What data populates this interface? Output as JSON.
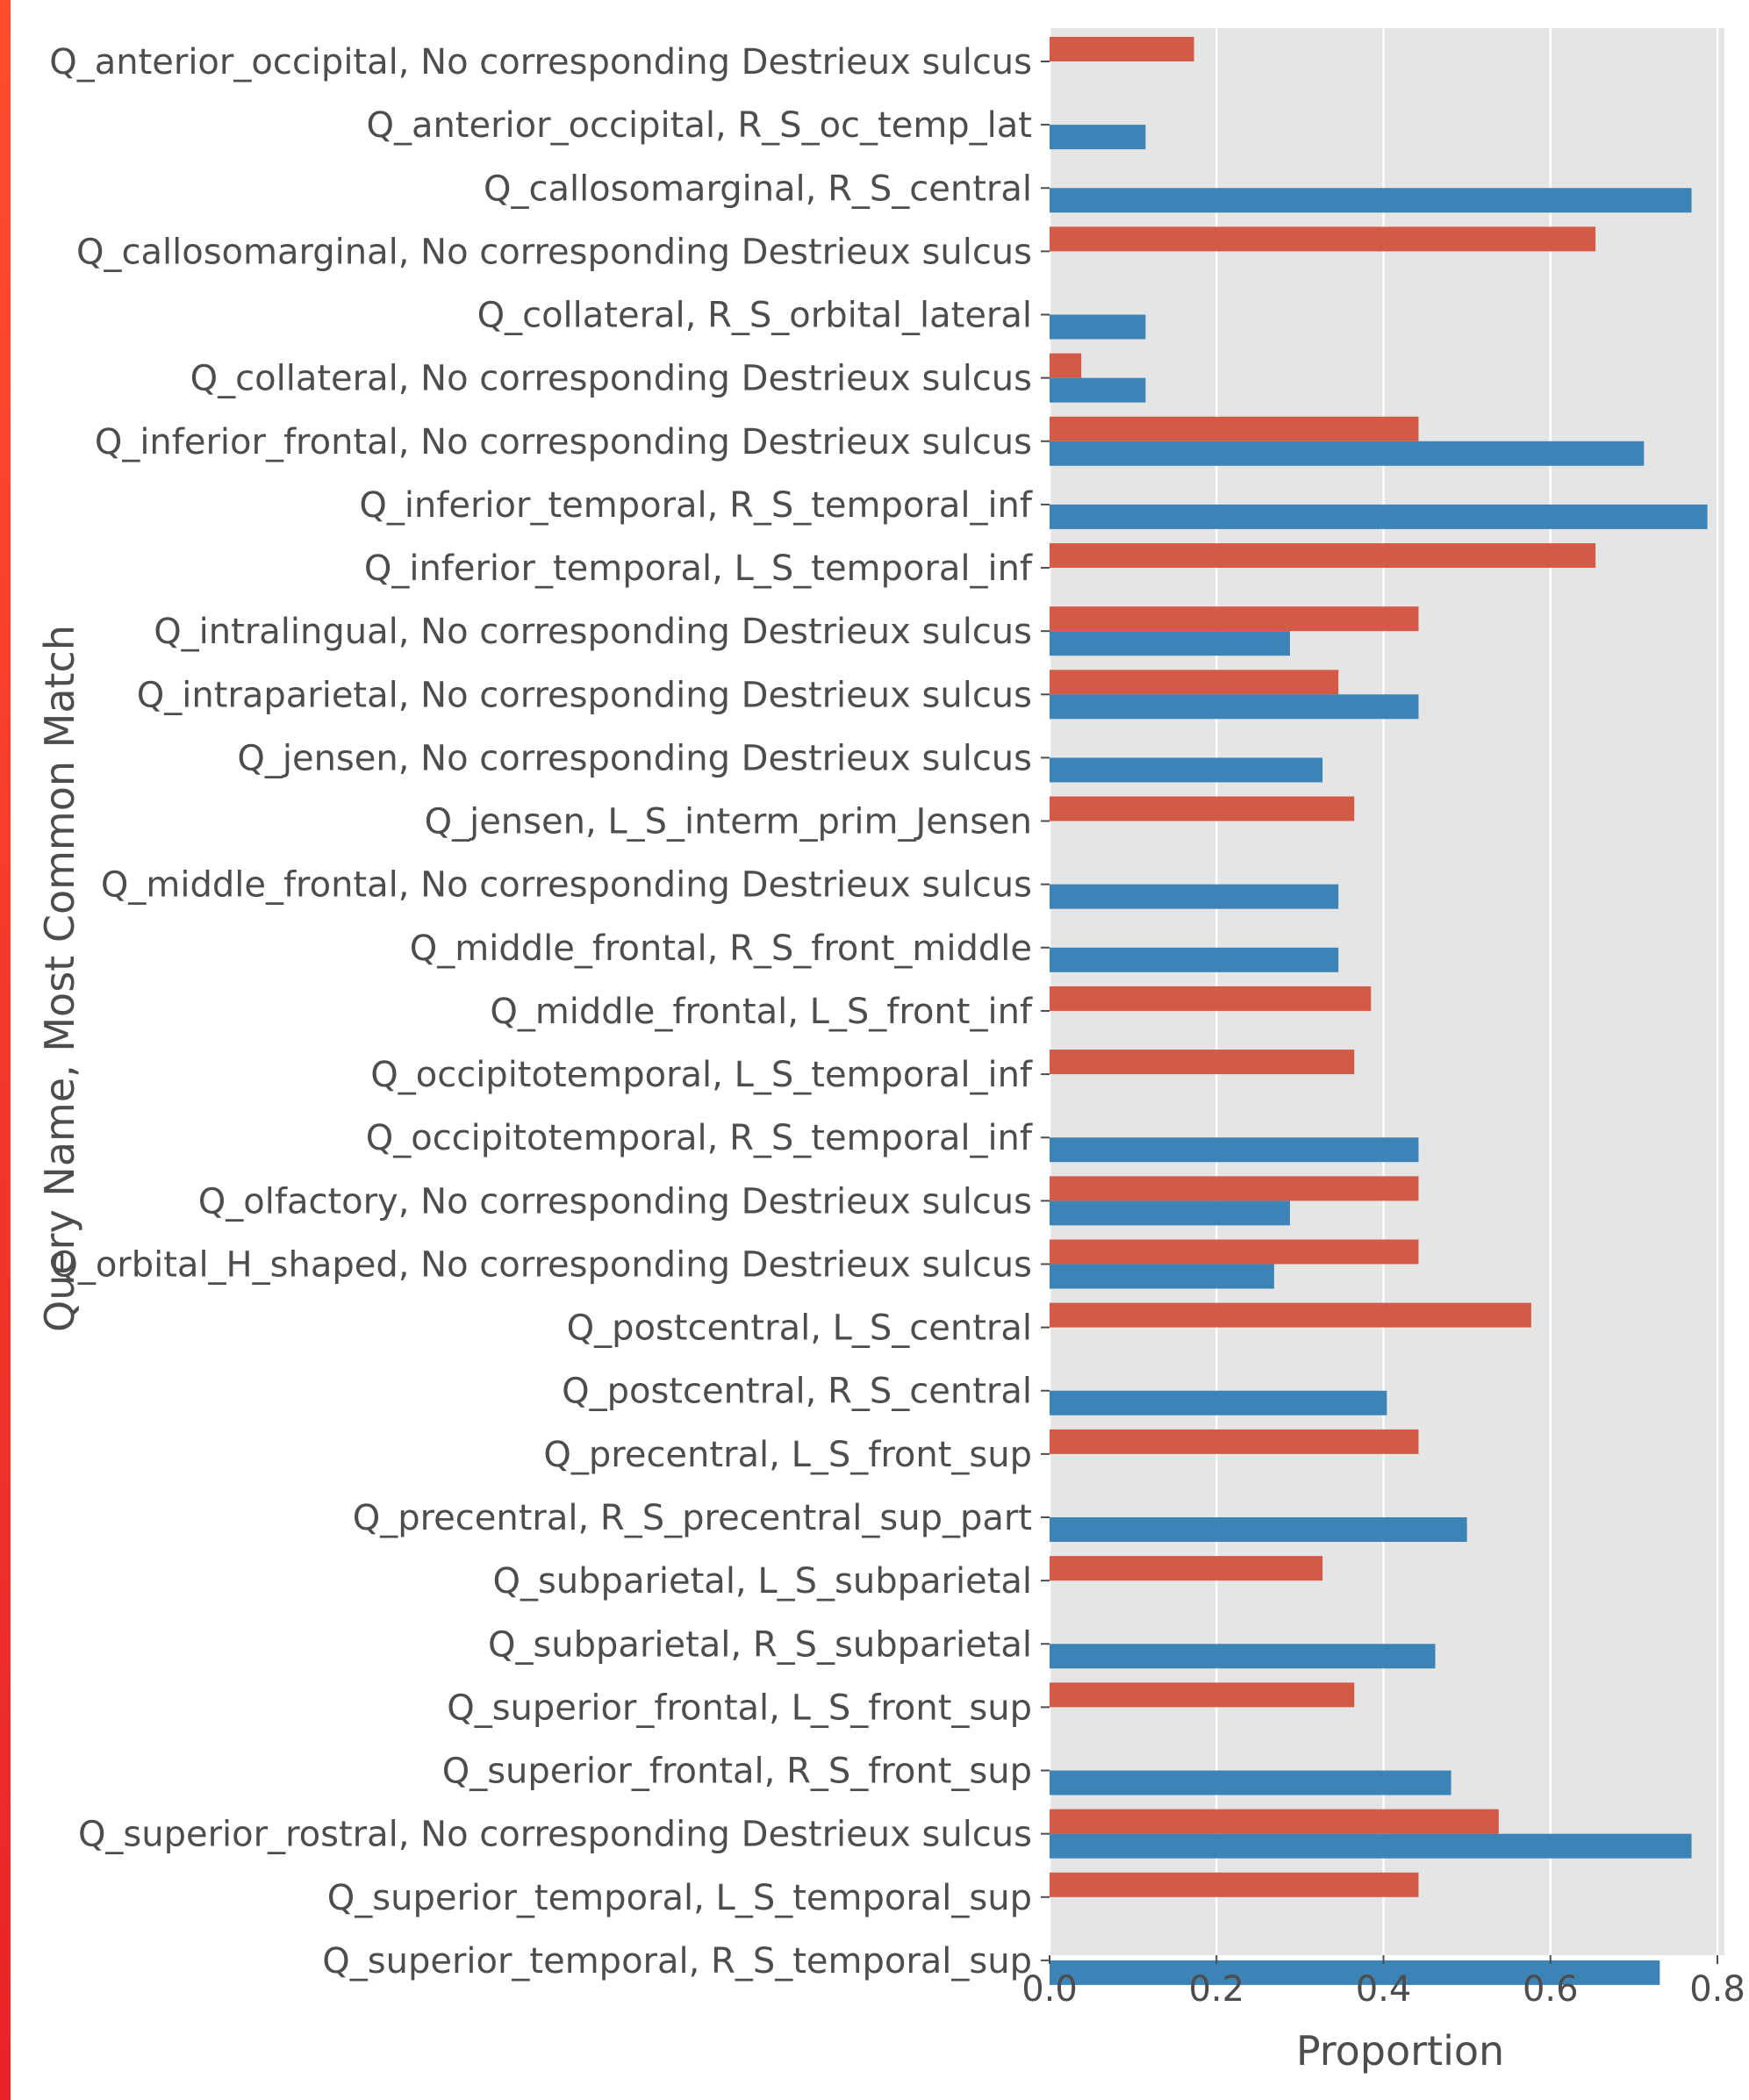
{
  "colors": {
    "panel": "#e5e5e5",
    "grid": "#ffffff",
    "tick": "#4d4d4d",
    "series_red": "#d35a46",
    "series_blue": "#3d84b6",
    "accent": "#ee2e2b"
  },
  "chart_data": {
    "type": "bar",
    "orientation": "horizontal",
    "xlabel": "Proportion",
    "ylabel": "Query Name, Most Common Match",
    "xlim": [
      0,
      0.8
    ],
    "xticks": [
      "0.0",
      "0.2",
      "0.4",
      "0.6",
      "0.8"
    ],
    "grid": true,
    "legend": "none",
    "categories": [
      "Q_anterior_occipital, No corresponding Destrieux sulcus",
      "Q_anterior_occipital, R_S_oc_temp_lat",
      "Q_callosomarginal, R_S_central",
      "Q_callosomarginal, No corresponding Destrieux sulcus",
      "Q_collateral, R_S_orbital_lateral",
      "Q_collateral, No corresponding Destrieux sulcus",
      "Q_inferior_frontal, No corresponding Destrieux sulcus",
      "Q_inferior_temporal, R_S_temporal_inf",
      "Q_inferior_temporal, L_S_temporal_inf",
      "Q_intralingual, No corresponding Destrieux sulcus",
      "Q_intraparietal, No corresponding Destrieux sulcus",
      "Q_jensen, No corresponding Destrieux sulcus",
      "Q_jensen, L_S_interm_prim_Jensen",
      "Q_middle_frontal, No corresponding Destrieux sulcus",
      "Q_middle_frontal, R_S_front_middle",
      "Q_middle_frontal, L_S_front_inf",
      "Q_occipitotemporal, L_S_temporal_inf",
      "Q_occipitotemporal, R_S_temporal_inf",
      "Q_olfactory, No corresponding Destrieux sulcus",
      "Q_orbital_H_shaped, No corresponding Destrieux sulcus",
      "Q_postcentral, L_S_central",
      "Q_postcentral, R_S_central",
      "Q_precentral, L_S_front_sup",
      "Q_precentral, R_S_precentral_sup_part",
      "Q_subparietal, L_S_subparietal",
      "Q_subparietal, R_S_subparietal",
      "Q_superior_frontal, L_S_front_sup",
      "Q_superior_frontal, R_S_front_sup",
      "Q_superior_rostral, No corresponding Destrieux sulcus",
      "Q_superior_temporal, L_S_temporal_sup",
      "Q_superior_temporal, R_S_temporal_sup"
    ],
    "series": [
      {
        "color": "#d35a46",
        "values": [
          0.173,
          null,
          null,
          0.654,
          null,
          0.038,
          0.442,
          null,
          0.654,
          0.442,
          0.346,
          null,
          0.365,
          null,
          null,
          0.385,
          0.365,
          null,
          0.442,
          0.442,
          0.577,
          null,
          0.442,
          null,
          0.327,
          null,
          0.365,
          null,
          0.538,
          0.442,
          null
        ]
      },
      {
        "color": "#3d84b6",
        "values": [
          null,
          0.115,
          0.769,
          null,
          0.115,
          0.115,
          0.712,
          0.788,
          null,
          0.288,
          0.442,
          0.327,
          null,
          0.346,
          0.346,
          null,
          null,
          0.442,
          0.288,
          0.269,
          null,
          0.404,
          null,
          0.5,
          null,
          0.462,
          null,
          0.481,
          0.769,
          null,
          0.731
        ]
      }
    ]
  }
}
